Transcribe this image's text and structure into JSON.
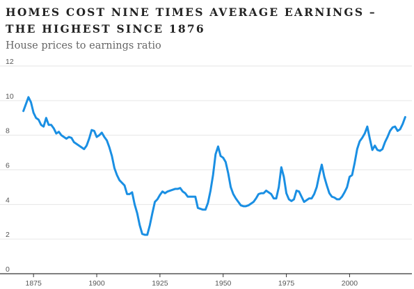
{
  "title": "HOMES COST NINE TIMES AVERAGE EARNINGS – THE HIGHEST SINCE 1876",
  "subtitle": "House prices to earnings ratio",
  "colors": {
    "line": "#1a8fe3",
    "grid": "#e6e6e6",
    "axis": "#333333",
    "text": "#555555"
  },
  "chart_data": {
    "type": "line",
    "title": "HOMES COST NINE TIMES AVERAGE EARNINGS – THE HIGHEST SINCE 1876",
    "subtitle": "House prices to earnings ratio",
    "xlabel": "",
    "ylabel": "",
    "xlim": [
      1870,
      2023
    ],
    "ylim": [
      0,
      12
    ],
    "x_ticks": [
      1875,
      1900,
      1925,
      1950,
      1975,
      2000
    ],
    "y_ticks": [
      0,
      2,
      4,
      6,
      8,
      10,
      12
    ],
    "grid": true,
    "x": [
      1871,
      1872,
      1873,
      1874,
      1875,
      1876,
      1877,
      1878,
      1879,
      1880,
      1881,
      1882,
      1883,
      1884,
      1885,
      1886,
      1887,
      1888,
      1889,
      1890,
      1891,
      1892,
      1893,
      1894,
      1895,
      1896,
      1897,
      1898,
      1899,
      1900,
      1901,
      1902,
      1903,
      1904,
      1905,
      1906,
      1907,
      1908,
      1909,
      1910,
      1911,
      1912,
      1913,
      1914,
      1915,
      1916,
      1917,
      1918,
      1919,
      1920,
      1921,
      1922,
      1923,
      1924,
      1925,
      1926,
      1927,
      1928,
      1929,
      1930,
      1931,
      1932,
      1933,
      1934,
      1935,
      1936,
      1937,
      1938,
      1939,
      1940,
      1941,
      1942,
      1943,
      1944,
      1945,
      1946,
      1947,
      1948,
      1949,
      1950,
      1951,
      1952,
      1953,
      1954,
      1955,
      1956,
      1957,
      1958,
      1959,
      1960,
      1961,
      1962,
      1963,
      1964,
      1965,
      1966,
      1967,
      1968,
      1969,
      1970,
      1971,
      1972,
      1973,
      1974,
      1975,
      1976,
      1977,
      1978,
      1979,
      1980,
      1981,
      1982,
      1983,
      1984,
      1985,
      1986,
      1987,
      1988,
      1989,
      1990,
      1991,
      1992,
      1993,
      1994,
      1995,
      1996,
      1997,
      1998,
      1999,
      2000,
      2001,
      2002,
      2003,
      2004,
      2005,
      2006,
      2007,
      2008,
      2009,
      2010,
      2011,
      2012,
      2013,
      2014,
      2015,
      2016,
      2017,
      2018,
      2019,
      2020,
      2021,
      2022
    ],
    "series": [
      {
        "values": [
          9.4,
          9.8,
          10.2,
          9.9,
          9.3,
          9.0,
          8.9,
          8.6,
          8.5,
          9.0,
          8.6,
          8.6,
          8.4,
          8.1,
          8.2,
          8.0,
          7.9,
          7.8,
          7.9,
          7.85,
          7.6,
          7.5,
          7.4,
          7.3,
          7.2,
          7.4,
          7.8,
          8.3,
          8.25,
          7.9,
          8.0,
          8.15,
          7.9,
          7.7,
          7.3,
          6.8,
          6.1,
          5.7,
          5.4,
          5.25,
          5.1,
          4.6,
          4.6,
          4.7,
          4.0,
          3.5,
          2.8,
          2.3,
          2.25,
          2.25,
          2.8,
          3.5,
          4.15,
          4.3,
          4.55,
          4.75,
          4.65,
          4.75,
          4.8,
          4.85,
          4.9,
          4.9,
          4.95,
          4.75,
          4.65,
          4.45,
          4.45,
          4.45,
          4.45,
          3.8,
          3.75,
          3.7,
          3.7,
          4.1,
          4.8,
          5.7,
          6.9,
          7.35,
          6.8,
          6.7,
          6.45,
          5.8,
          5.0,
          4.6,
          4.35,
          4.15,
          3.95,
          3.9,
          3.9,
          3.95,
          4.05,
          4.15,
          4.35,
          4.6,
          4.65,
          4.65,
          4.8,
          4.7,
          4.6,
          4.35,
          4.35,
          5.0,
          6.15,
          5.6,
          4.65,
          4.3,
          4.2,
          4.3,
          4.8,
          4.75,
          4.45,
          4.15,
          4.25,
          4.35,
          4.35,
          4.6,
          5.0,
          5.7,
          6.3,
          5.6,
          5.1,
          4.65,
          4.45,
          4.4,
          4.3,
          4.3,
          4.45,
          4.7,
          5.0,
          5.6,
          5.7,
          6.4,
          7.2,
          7.65,
          7.85,
          8.1,
          8.5,
          7.8,
          7.15,
          7.4,
          7.15,
          7.1,
          7.2,
          7.6,
          7.9,
          8.25,
          8.45,
          8.5,
          8.25,
          8.35,
          8.65,
          9.05
        ]
      }
    ]
  }
}
